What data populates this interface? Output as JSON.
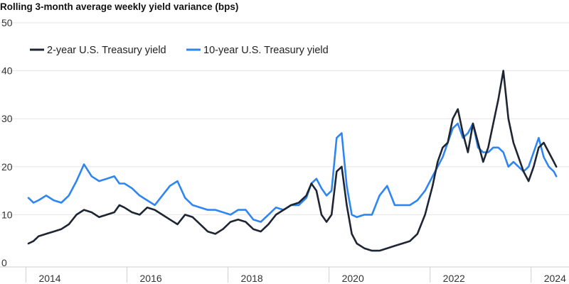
{
  "chart_data": {
    "type": "line",
    "title": "Rolling 3-month average weekly yield variance (bps)",
    "xlabel": "",
    "ylabel": "",
    "ylim": [
      0,
      50
    ],
    "xlim": [
      2013.8,
      2024.5
    ],
    "y_ticks": [
      "0",
      "10",
      "20",
      "30",
      "40",
      "50"
    ],
    "x_ticks": [
      "2014",
      "2016",
      "2018",
      "2020",
      "2022",
      "2024"
    ],
    "grid": "horizontal",
    "legend_position": "top-left",
    "colors": {
      "two_year": "#1e2533",
      "ten_year": "#2f86f2"
    },
    "series": [
      {
        "name": "2-year U.S. Treasury yield",
        "x": [
          2013.8,
          2013.9,
          2014.0,
          2014.15,
          2014.3,
          2014.45,
          2014.6,
          2014.75,
          2014.9,
          2015.05,
          2015.2,
          2015.35,
          2015.5,
          2015.6,
          2015.7,
          2015.85,
          2016.0,
          2016.15,
          2016.3,
          2016.45,
          2016.6,
          2016.75,
          2016.9,
          2017.05,
          2017.2,
          2017.35,
          2017.5,
          2017.65,
          2017.8,
          2017.95,
          2018.1,
          2018.25,
          2018.4,
          2018.55,
          2018.7,
          2018.85,
          2019.0,
          2019.15,
          2019.3,
          2019.4,
          2019.5,
          2019.6,
          2019.7,
          2019.8,
          2019.9,
          2020.0,
          2020.1,
          2020.2,
          2020.3,
          2020.45,
          2020.6,
          2020.75,
          2020.9,
          2021.05,
          2021.2,
          2021.35,
          2021.5,
          2021.65,
          2021.8,
          2021.9,
          2022.0,
          2022.1,
          2022.2,
          2022.3,
          2022.4,
          2022.5,
          2022.6,
          2022.7,
          2022.8,
          2022.9,
          2023.0,
          2023.1,
          2023.2,
          2023.3,
          2023.4,
          2023.5,
          2023.6,
          2023.7,
          2023.8,
          2023.9,
          2024.0,
          2024.1,
          2024.2,
          2024.25
        ],
        "values": [
          4,
          4.5,
          5.5,
          6,
          6.5,
          7,
          8,
          10,
          11,
          10.5,
          9.5,
          10,
          10.5,
          12,
          11.5,
          10.5,
          10,
          11.5,
          11,
          10,
          9,
          8,
          10,
          9.5,
          8,
          6.5,
          6,
          7,
          8.5,
          9,
          8.5,
          7,
          6.5,
          8,
          10,
          11,
          12,
          12.5,
          14,
          16.5,
          15,
          10,
          8.5,
          10,
          19,
          20,
          12,
          6,
          4,
          3,
          2.5,
          2.5,
          3,
          3.5,
          4,
          4.5,
          6,
          10,
          16,
          21,
          24,
          25,
          30,
          32,
          27,
          23,
          29,
          25,
          21,
          24,
          29,
          34,
          40,
          30,
          25,
          22,
          19,
          17,
          20,
          24,
          25,
          23,
          21,
          20
        ]
      },
      {
        "name": "10-year U.S. Treasury yield",
        "x": [
          2013.8,
          2013.9,
          2014.0,
          2014.15,
          2014.3,
          2014.45,
          2014.6,
          2014.75,
          2014.9,
          2015.05,
          2015.2,
          2015.35,
          2015.5,
          2015.6,
          2015.7,
          2015.85,
          2016.0,
          2016.15,
          2016.3,
          2016.45,
          2016.6,
          2016.75,
          2016.9,
          2017.05,
          2017.2,
          2017.35,
          2017.5,
          2017.65,
          2017.8,
          2017.95,
          2018.1,
          2018.25,
          2018.4,
          2018.55,
          2018.7,
          2018.85,
          2019.0,
          2019.15,
          2019.3,
          2019.4,
          2019.5,
          2019.6,
          2019.7,
          2019.8,
          2019.9,
          2020.0,
          2020.1,
          2020.2,
          2020.3,
          2020.45,
          2020.6,
          2020.75,
          2020.9,
          2021.05,
          2021.2,
          2021.35,
          2021.5,
          2021.65,
          2021.8,
          2021.9,
          2022.0,
          2022.1,
          2022.2,
          2022.3,
          2022.4,
          2022.5,
          2022.6,
          2022.7,
          2022.8,
          2022.9,
          2023.0,
          2023.1,
          2023.2,
          2023.3,
          2023.4,
          2023.5,
          2023.6,
          2023.7,
          2023.8,
          2023.9,
          2024.0,
          2024.1,
          2024.2,
          2024.25
        ],
        "values": [
          13.5,
          12.5,
          13,
          14,
          13,
          12.5,
          14,
          17,
          20.5,
          18,
          17,
          17.5,
          18,
          16.5,
          16.5,
          15.5,
          14,
          13,
          12,
          14,
          16,
          17,
          13.5,
          12,
          11.5,
          11,
          11,
          10.5,
          10,
          11,
          11,
          9,
          8.5,
          10,
          11.5,
          11,
          12,
          12,
          13.5,
          16.5,
          17.5,
          15.5,
          14,
          15,
          26,
          27,
          16,
          10,
          9.5,
          10,
          10,
          14,
          16,
          12,
          12,
          12,
          13,
          15,
          18,
          20,
          22,
          25,
          28,
          29,
          26,
          27,
          29,
          24,
          23,
          23,
          24,
          24,
          23,
          20,
          21,
          20,
          19,
          20,
          23,
          26,
          22,
          20,
          19,
          18
        ]
      }
    ]
  }
}
